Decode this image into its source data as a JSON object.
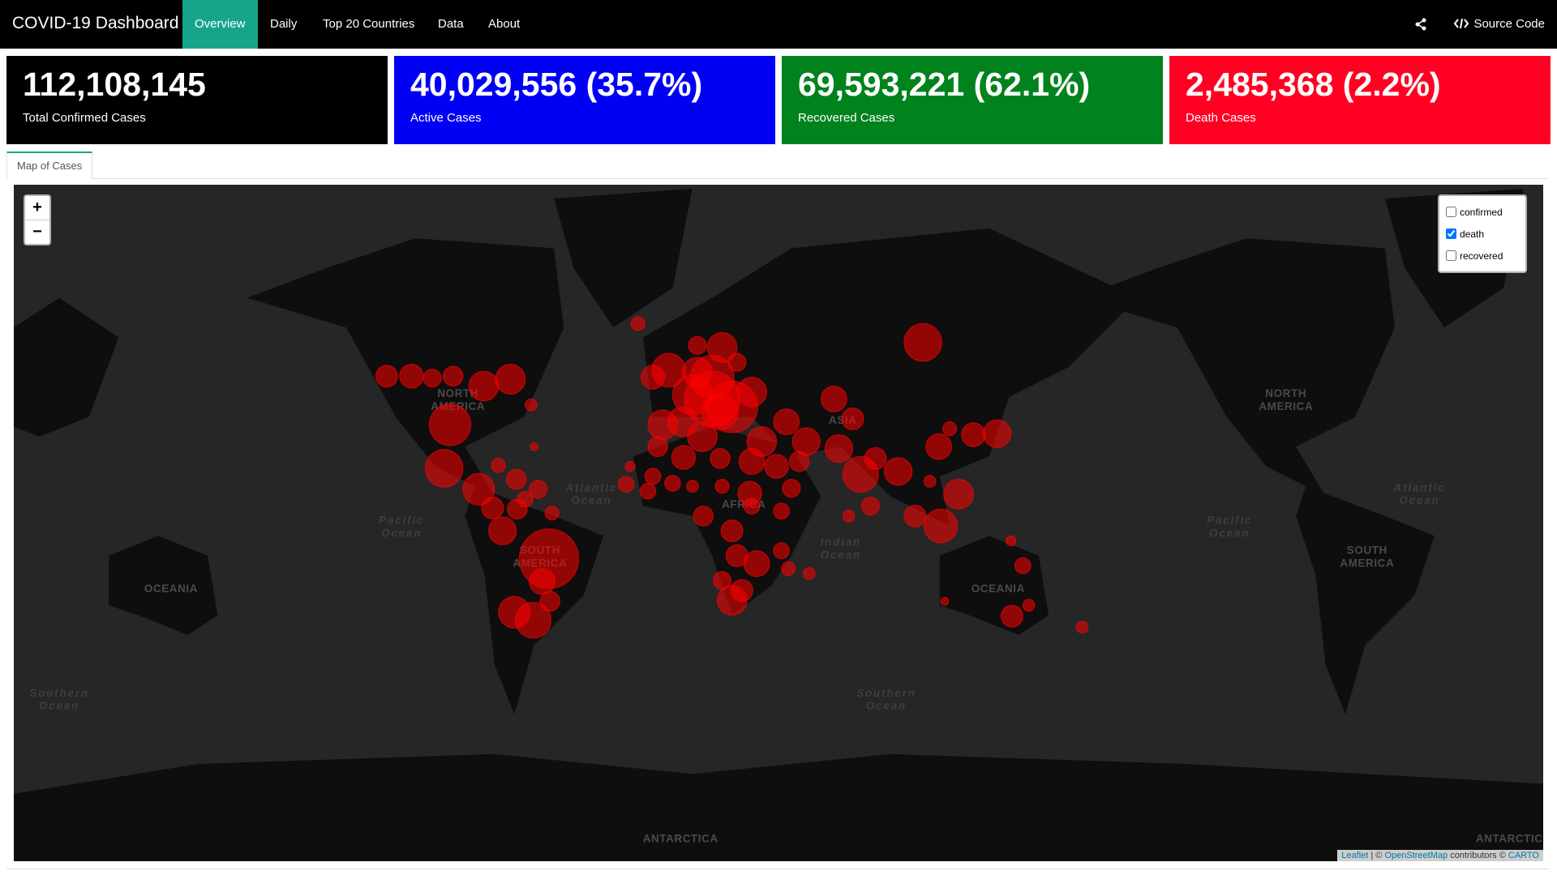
{
  "header": {
    "title": "COVID-19 Dashboard",
    "nav": [
      "Overview",
      "Daily",
      "Top 20 Countries",
      "Data",
      "About"
    ],
    "active": 0,
    "source": "Source Code"
  },
  "value_boxes": [
    {
      "value": "112,108,145",
      "label": "Total Confirmed Cases",
      "color": "#000000"
    },
    {
      "value": "40,029,556 (35.7%)",
      "label": "Active Cases",
      "color": "#0000f5"
    },
    {
      "value": "69,593,221 (62.1%)",
      "label": "Recovered Cases",
      "color": "#00821d"
    },
    {
      "value": "2,485,368 (2.2%)",
      "label": "Death Cases",
      "color": "#ff0022"
    }
  ],
  "tab": "Map of Cases",
  "map": {
    "labels": [
      [
        "NORTH",
        "AMERICA"
      ],
      [
        "SOUTH",
        "AMERICA"
      ],
      [
        "OCEANIA"
      ],
      [
        "OCEANIA"
      ],
      [
        "AFRICA"
      ],
      [
        "ASIA"
      ],
      [
        "NORTH",
        "AMERICA"
      ],
      [
        "SOUTH",
        "AMERICA"
      ],
      [
        "ANTARCTICA"
      ],
      [
        "Atlantic",
        "Ocean"
      ],
      [
        "Pacific",
        "Ocean"
      ],
      [
        "Indian",
        "Ocean"
      ],
      [
        "Southern",
        "Ocean"
      ],
      [
        "Southern",
        "Ocean"
      ],
      [
        "Atlantic",
        "Ocean"
      ],
      [
        "Pacific",
        "Ocean"
      ],
      [
        "ANTARCTICA"
      ]
    ],
    "zoom": [
      "+",
      "−"
    ],
    "layers": [
      {
        "name": "confirmed",
        "checked": false
      },
      {
        "name": "death",
        "checked": true
      },
      {
        "name": "recovered",
        "checked": false
      }
    ],
    "attribution": {
      "leaflet": "Leaflet",
      "sep": "| ©",
      "osm": "OpenStreetMap",
      "mid": "contributors ©",
      "carto": "CARTO"
    }
  }
}
